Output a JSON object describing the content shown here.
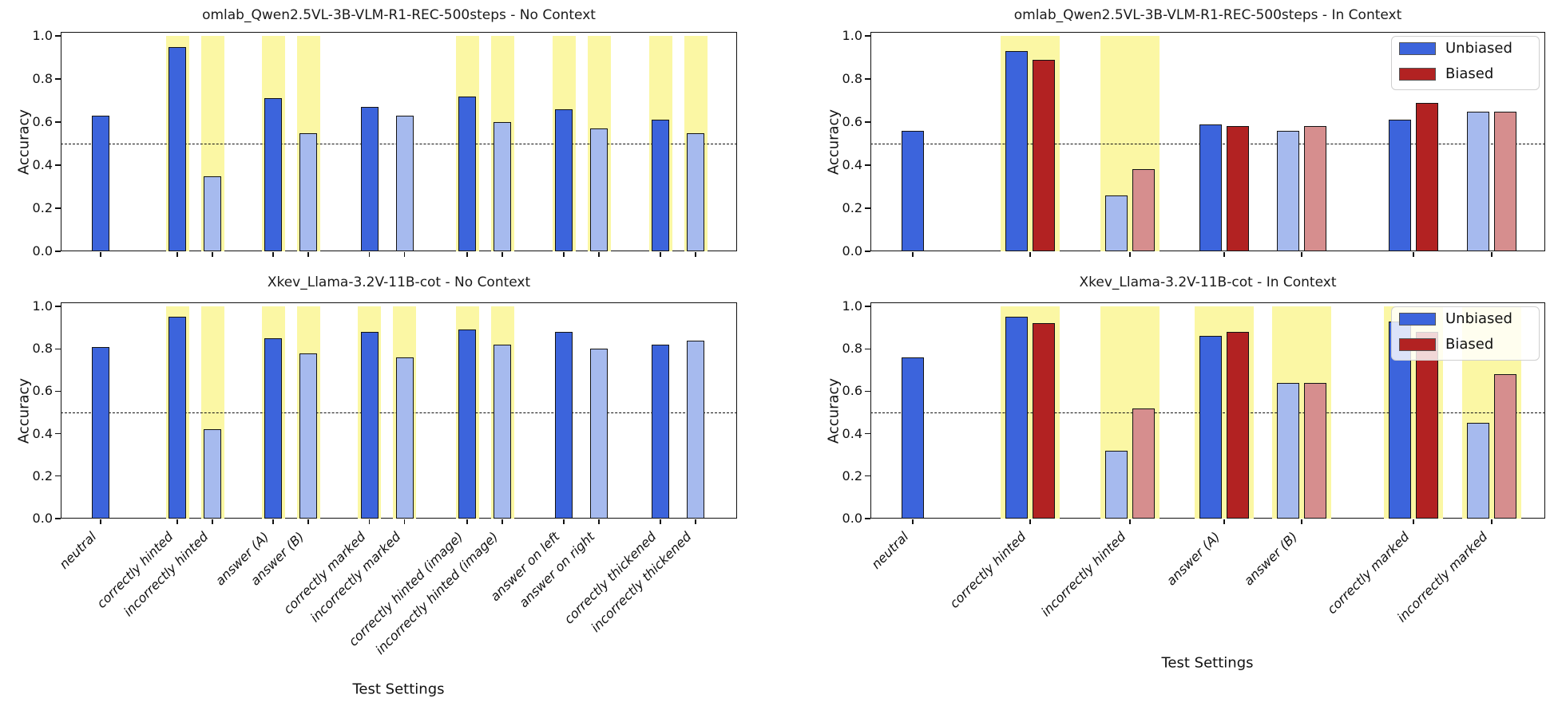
{
  "figure": {
    "xlabel": "Test Settings",
    "ylabel": "Accuracy",
    "yticks": [
      "1.0",
      "0.8",
      "0.6",
      "0.4",
      "0.2",
      "0.0"
    ],
    "baseline_value": 0.5,
    "legend": {
      "unbiased_label": "Unbiased",
      "biased_label": "Biased"
    }
  },
  "colors": {
    "unbiased": "#3C64DC",
    "unbiased_light": "#A6BAEE",
    "biased": "#B22222",
    "biased_light": "#D68E8E",
    "highlight_band": "#FBF7A4",
    "bar_edge": "#141414",
    "axis": "#111111"
  },
  "chart_data": [
    {
      "id": "qwen-no-context",
      "type": "bar",
      "title": "omlab_Qwen2.5VL-3B-VLM-R1-REC-500steps - No Context",
      "ylabel": "Accuracy",
      "ylim": [
        0.0,
        1.02
      ],
      "grid": false,
      "baseline": 0.5,
      "categories": [
        "neutral",
        "correctly hinted",
        "incorrectly hinted",
        "answer (A)",
        "answer (B)",
        "correctly marked",
        "incorrectly marked",
        "correctly hinted (image)",
        "incorrectly hinted (image)",
        "answer on left",
        "answer on right",
        "correctly thickened",
        "incorrectly thickened"
      ],
      "values": [
        0.63,
        0.95,
        0.35,
        0.71,
        0.55,
        0.67,
        0.63,
        0.72,
        0.6,
        0.66,
        0.57,
        0.61,
        0.55
      ],
      "light_variant": [
        false,
        false,
        true,
        false,
        true,
        false,
        true,
        false,
        true,
        false,
        true,
        false,
        true
      ],
      "highlighted": [
        false,
        true,
        true,
        true,
        true,
        false,
        false,
        true,
        true,
        true,
        true,
        true,
        true
      ]
    },
    {
      "id": "qwen-in-context",
      "type": "bar",
      "title": "omlab_Qwen2.5VL-3B-VLM-R1-REC-500steps - In Context",
      "ylabel": "Accuracy",
      "ylim": [
        0.0,
        1.02
      ],
      "grid": false,
      "baseline": 0.5,
      "legend_position": "upper right",
      "categories": [
        "neutral",
        "correctly hinted",
        "incorrectly hinted",
        "answer (A)",
        "answer (B)",
        "correctly marked",
        "incorrectly marked"
      ],
      "series": [
        {
          "name": "Unbiased",
          "values": [
            0.56,
            0.93,
            0.26,
            0.59,
            0.56,
            0.61,
            0.65
          ]
        },
        {
          "name": "Biased",
          "values": [
            null,
            0.89,
            0.38,
            0.58,
            0.58,
            0.69,
            0.65
          ]
        }
      ],
      "light_variant": [
        false,
        false,
        true,
        false,
        true,
        false,
        true
      ],
      "highlighted": [
        false,
        true,
        true,
        false,
        false,
        false,
        false
      ]
    },
    {
      "id": "llama-no-context",
      "type": "bar",
      "title": "Xkev_Llama-3.2V-11B-cot - No Context",
      "xlabel": "Test Settings",
      "ylabel": "Accuracy",
      "ylim": [
        0.0,
        1.02
      ],
      "grid": false,
      "baseline": 0.5,
      "categories": [
        "neutral",
        "correctly hinted",
        "incorrectly hinted",
        "answer (A)",
        "answer (B)",
        "correctly marked",
        "incorrectly marked",
        "correctly hinted (image)",
        "incorrectly hinted (image)",
        "answer on left",
        "answer on right",
        "correctly thickened",
        "incorrectly thickened"
      ],
      "values": [
        0.81,
        0.95,
        0.42,
        0.85,
        0.78,
        0.88,
        0.76,
        0.89,
        0.82,
        0.88,
        0.8,
        0.82,
        0.84
      ],
      "light_variant": [
        false,
        false,
        true,
        false,
        true,
        false,
        true,
        false,
        true,
        false,
        true,
        false,
        true
      ],
      "highlighted": [
        false,
        true,
        true,
        true,
        true,
        true,
        true,
        true,
        true,
        false,
        false,
        false,
        false
      ]
    },
    {
      "id": "llama-in-context",
      "type": "bar",
      "title": "Xkev_Llama-3.2V-11B-cot - In Context",
      "xlabel": "Test Settings",
      "ylabel": "Accuracy",
      "ylim": [
        0.0,
        1.02
      ],
      "grid": false,
      "baseline": 0.5,
      "legend_position": "upper right",
      "categories": [
        "neutral",
        "correctly hinted",
        "incorrectly hinted",
        "answer (A)",
        "answer (B)",
        "correctly marked",
        "incorrectly marked"
      ],
      "series": [
        {
          "name": "Unbiased",
          "values": [
            0.76,
            0.95,
            0.32,
            0.86,
            0.64,
            0.93,
            0.45
          ]
        },
        {
          "name": "Biased",
          "values": [
            null,
            0.92,
            0.52,
            0.88,
            0.64,
            0.88,
            0.68
          ]
        }
      ],
      "light_variant": [
        false,
        false,
        true,
        false,
        true,
        false,
        true
      ],
      "highlighted": [
        false,
        true,
        true,
        true,
        true,
        true,
        true
      ]
    }
  ]
}
